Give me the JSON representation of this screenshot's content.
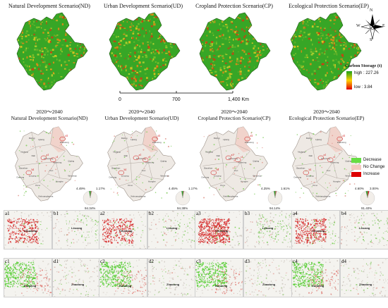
{
  "top_titles": [
    "Natural Development Scenario(ND)",
    "Urban Development Scenario(UD)",
    "Cropland Protection Scenario(CP)",
    "Ecological Protection Scenario(EP)"
  ],
  "compass": {
    "n": "N",
    "s": "S",
    "e": "E",
    "w": "W"
  },
  "carbon_legend": {
    "title": "Carbon Storage (t)",
    "high": "high : 227.26",
    "low": "low : 3.84",
    "colors": [
      "#1aa01a",
      "#ffd200",
      "#e10000"
    ]
  },
  "scale_bar": {
    "ticks": [
      "0",
      "700",
      "1,400 Km"
    ]
  },
  "change_titles": [
    {
      "period": "2020～2040",
      "scenario": "Natural Development Scenario(ND)"
    },
    {
      "period": "2020～2040",
      "scenario": "Urban Development Scenario(UD)"
    },
    {
      "period": "2020～2040",
      "scenario": "Cropland Protection Scenario(CP)"
    },
    {
      "period": "2020～2040",
      "scenario": "Ecological Protection Scenario(EP)"
    }
  ],
  "change_legend": {
    "items": [
      {
        "label": "Decrease",
        "color": "#66dd44"
      },
      {
        "label": "No Change",
        "color": "#f2c9c0"
      },
      {
        "label": "Increase",
        "color": "#dd0000"
      }
    ]
  },
  "pies": [
    {
      "labels": [
        "4.49%",
        "1.17%",
        "94.34%"
      ],
      "decrease": 4.49,
      "increase": 1.17,
      "nochange": 94.34
    },
    {
      "labels": [
        "4.45%",
        "1.17%",
        "94.38%"
      ],
      "decrease": 4.45,
      "increase": 1.17,
      "nochange": 94.38
    },
    {
      "labels": [
        "4.25%",
        "1.61%",
        "94.14%"
      ],
      "decrease": 4.25,
      "increase": 1.61,
      "nochange": 94.14
    },
    {
      "labels": [
        "4.60%",
        "3.00%",
        "91.40%"
      ],
      "decrease": 4.6,
      "increase": 3.0,
      "nochange": 91.4
    }
  ],
  "detail_panels": [
    {
      "id": "a1",
      "city": "Chuxiong"
    },
    {
      "id": "b1",
      "city": "Lincang"
    },
    {
      "id": "a2",
      "city": "Chuxiong"
    },
    {
      "id": "b2",
      "city": "Lincang"
    },
    {
      "id": "a3",
      "city": "Chuxiong"
    },
    {
      "id": "b3",
      "city": "Lincang"
    },
    {
      "id": "a4",
      "city": "Chuxiong"
    },
    {
      "id": "b4",
      "city": "Lincang"
    },
    {
      "id": "c1",
      "city": "Kunming"
    },
    {
      "id": "d1",
      "city": "Zhaotong"
    },
    {
      "id": "c2",
      "city": "Kunming"
    },
    {
      "id": "d2",
      "city": "Zhaotong"
    },
    {
      "id": "c3",
      "city": "Kunming"
    },
    {
      "id": "d3",
      "city": "Zhaotong"
    },
    {
      "id": "c4",
      "city": "Kunming"
    },
    {
      "id": "d4",
      "city": "Zhaotong"
    }
  ],
  "map_marks": [
    "a1",
    "b1",
    "c1",
    "d1"
  ],
  "colors": {
    "green": "#2c9a1e",
    "orange": "#e07a10",
    "red": "#d40000",
    "beige": "#f0ebe2",
    "grey": "#d8d4cf"
  }
}
